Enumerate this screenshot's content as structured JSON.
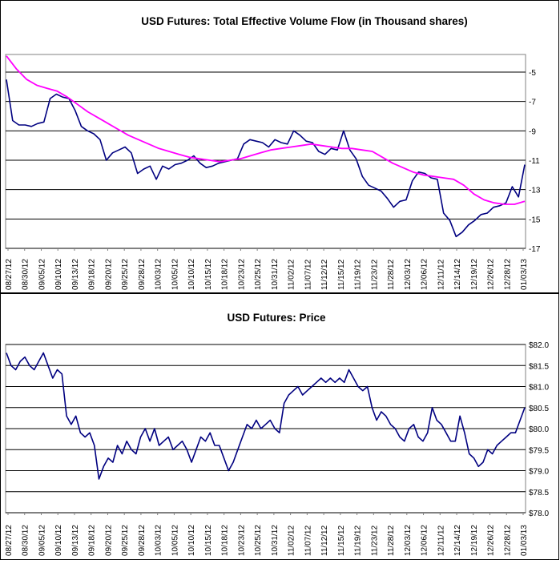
{
  "chart_data": [
    {
      "type": "line",
      "title": "USD Futures: Total Effective Volume Flow (in Thousand shares)",
      "xlabel": "",
      "ylabel": "",
      "x_tick_labels": [
        "08/27/12",
        "08/30/12",
        "09/05/12",
        "09/10/12",
        "09/13/12",
        "09/18/12",
        "09/20/12",
        "09/25/12",
        "09/28/12",
        "10/03/12",
        "10/05/12",
        "10/10/12",
        "10/15/12",
        "10/18/12",
        "10/23/12",
        "10/25/12",
        "10/31/12",
        "11/02/12",
        "11/07/12",
        "11/12/12",
        "11/15/12",
        "11/19/12",
        "11/23/12",
        "11/28/12",
        "12/03/12",
        "12/06/12",
        "12/11/12",
        "12/14/12",
        "12/19/12",
        "12/26/12",
        "12/28/12",
        "01/03/13"
      ],
      "y_tick_labels": [
        "-5",
        "-7",
        "-9",
        "-11",
        "-13",
        "-15",
        "-17"
      ],
      "ylim": [
        -17,
        -3.8
      ],
      "grid": true,
      "legend": "none",
      "series": [
        {
          "color": "#000080",
          "values": [
            -5.5,
            -8.3,
            -8.6,
            -8.6,
            -8.7,
            -8.5,
            -8.4,
            -6.8,
            -6.5,
            -6.7,
            -6.8,
            -7.6,
            -8.7,
            -9.0,
            -9.2,
            -9.6,
            -11.0,
            -10.5,
            -10.3,
            -10.1,
            -10.5,
            -11.9,
            -11.6,
            -11.4,
            -12.3,
            -11.4,
            -11.6,
            -11.3,
            -11.2,
            -11.0,
            -10.7,
            -11.2,
            -11.5,
            -11.4,
            -11.2,
            -11.1,
            -11.0,
            -10.9,
            -9.9,
            -9.6,
            -9.7,
            -9.8,
            -10.1,
            -9.6,
            -9.8,
            -9.9,
            -9.0,
            -9.3,
            -9.7,
            -9.8,
            -10.4,
            -10.6,
            -10.2,
            -10.3,
            -9.0,
            -10.3,
            -10.9,
            -12.1,
            -12.7,
            -12.9,
            -13.1,
            -13.6,
            -14.2,
            -13.8,
            -13.7,
            -12.4,
            -11.8,
            -11.9,
            -12.2,
            -12.3,
            -14.6,
            -15.1,
            -16.2,
            -15.9,
            -15.4,
            -15.1,
            -14.7,
            -14.6,
            -14.2,
            -14.1,
            -13.9,
            -12.8,
            -13.5,
            -11.3
          ]
        },
        {
          "color": "#ff00ff",
          "values": [
            -3.9,
            -4.8,
            -5.5,
            -5.9,
            -6.1,
            -6.3,
            -6.7,
            -7.2,
            -7.7,
            -8.1,
            -8.5,
            -8.9,
            -9.3,
            -9.6,
            -9.9,
            -10.2,
            -10.4,
            -10.6,
            -10.8,
            -10.9,
            -11.0,
            -11.1,
            -11.0,
            -10.9,
            -10.7,
            -10.5,
            -10.3,
            -10.2,
            -10.1,
            -10.0,
            -9.9,
            -10.0,
            -10.1,
            -10.2,
            -10.2,
            -10.3,
            -10.4,
            -10.8,
            -11.2,
            -11.5,
            -11.8,
            -12.0,
            -12.1,
            -12.2,
            -12.3,
            -12.7,
            -13.3,
            -13.7,
            -13.9,
            -14.0,
            -14.0,
            -13.8
          ]
        }
      ]
    },
    {
      "type": "line",
      "title": "USD Futures: Price",
      "xlabel": "",
      "ylabel": "",
      "x_tick_labels": [
        "08/27/12",
        "08/30/12",
        "09/05/12",
        "09/10/12",
        "09/13/12",
        "09/18/12",
        "09/20/12",
        "09/25/12",
        "09/28/12",
        "10/03/12",
        "10/05/12",
        "10/10/12",
        "10/15/12",
        "10/18/12",
        "10/23/12",
        "10/25/12",
        "10/31/12",
        "11/02/12",
        "11/07/12",
        "11/12/12",
        "11/15/12",
        "11/19/12",
        "11/23/12",
        "11/28/12",
        "12/03/12",
        "12/06/12",
        "12/11/12",
        "12/14/12",
        "12/19/12",
        "12/26/12",
        "12/28/12",
        "01/03/13"
      ],
      "y_tick_labels": [
        "$82.0",
        "$81.5",
        "$81.0",
        "$80.5",
        "$80.0",
        "$79.5",
        "$79.0",
        "$78.5",
        "$78.0"
      ],
      "ylim": [
        78.0,
        82.0
      ],
      "grid": true,
      "legend": "none",
      "series": [
        {
          "color": "#000080",
          "values": [
            81.8,
            81.5,
            81.4,
            81.6,
            81.7,
            81.5,
            81.4,
            81.6,
            81.8,
            81.5,
            81.2,
            81.4,
            81.3,
            80.3,
            80.1,
            80.3,
            79.9,
            79.8,
            79.9,
            79.6,
            78.8,
            79.1,
            79.3,
            79.2,
            79.6,
            79.4,
            79.7,
            79.5,
            79.4,
            79.8,
            80.0,
            79.7,
            80.0,
            79.6,
            79.7,
            79.8,
            79.5,
            79.6,
            79.7,
            79.5,
            79.2,
            79.5,
            79.8,
            79.7,
            79.9,
            79.6,
            79.6,
            79.3,
            79.0,
            79.2,
            79.5,
            79.8,
            80.1,
            80.0,
            80.2,
            80.0,
            80.1,
            80.2,
            80.0,
            79.9,
            80.6,
            80.8,
            80.9,
            81.0,
            80.8,
            80.9,
            81.0,
            81.1,
            81.2,
            81.1,
            81.2,
            81.1,
            81.2,
            81.1,
            81.4,
            81.2,
            81.0,
            80.9,
            81.0,
            80.5,
            80.2,
            80.4,
            80.3,
            80.1,
            80.0,
            79.8,
            79.7,
            80.0,
            80.1,
            79.8,
            79.7,
            79.9,
            80.5,
            80.2,
            80.1,
            79.9,
            79.7,
            79.7,
            80.3,
            79.9,
            79.4,
            79.3,
            79.1,
            79.2,
            79.5,
            79.4,
            79.6,
            79.7,
            79.8,
            79.9,
            79.9,
            80.2,
            80.5
          ]
        }
      ]
    }
  ]
}
